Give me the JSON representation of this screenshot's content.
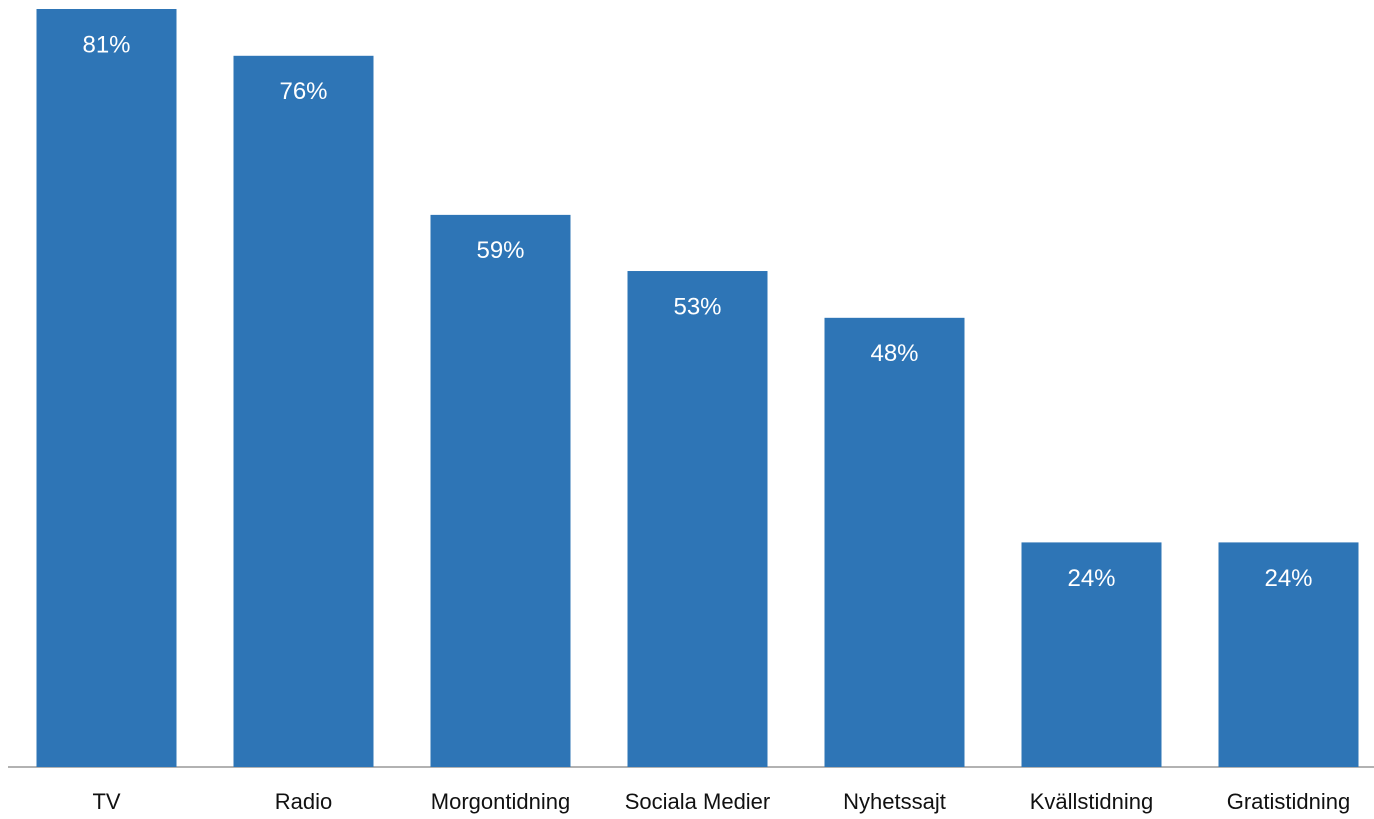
{
  "chart_data": {
    "type": "bar",
    "categories": [
      "TV",
      "Radio",
      "Morgontidning",
      "Sociala Medier",
      "Nyhetssajt",
      "Kvällstidning",
      "Gratistidning"
    ],
    "values": [
      81,
      76,
      59,
      53,
      48,
      24,
      24
    ],
    "value_labels": [
      "81%",
      "76%",
      "59%",
      "53%",
      "48%",
      "24%",
      "24%"
    ],
    "color": "#2e75b6"
  }
}
